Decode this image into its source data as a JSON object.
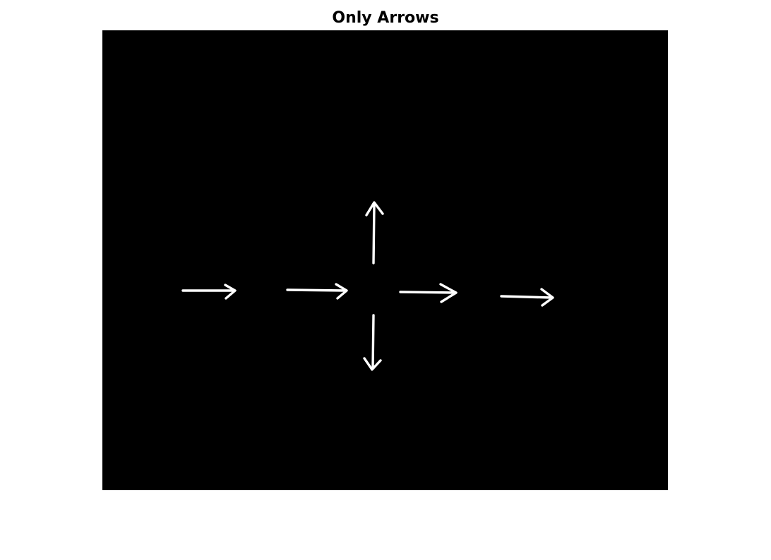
{
  "figure": {
    "title": "Only Arrows"
  },
  "image": {
    "background_color": "#000000",
    "foreground_color": "#ffffff",
    "arrows": [
      {
        "name": "arrow-right-1",
        "direction": "right"
      },
      {
        "name": "arrow-right-2",
        "direction": "right"
      },
      {
        "name": "arrow-up",
        "direction": "up"
      },
      {
        "name": "arrow-down",
        "direction": "down"
      },
      {
        "name": "arrow-right-3",
        "direction": "right"
      },
      {
        "name": "arrow-right-4",
        "direction": "right"
      }
    ]
  }
}
